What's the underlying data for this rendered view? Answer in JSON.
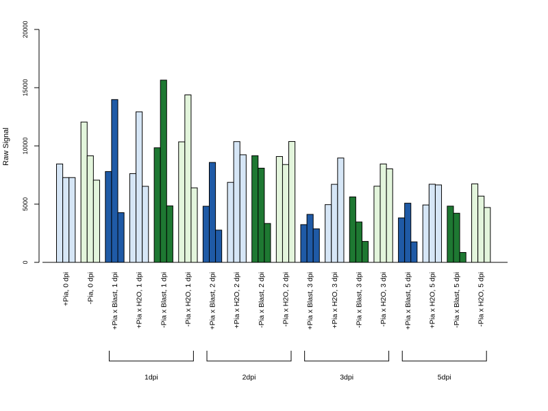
{
  "chart_data": {
    "type": "bar",
    "ylabel": "Raw Signal",
    "xlabel": "",
    "ylim": [
      0,
      20000
    ],
    "yticks": [
      0,
      5000,
      10000,
      15000,
      20000
    ],
    "grid": false,
    "categories": [
      "+Pia, 0 dpi",
      "-Pia, 0 dpi",
      "+Pia x Blast, 1 dpi",
      "+Pia x H2O, 1 dpi",
      "-Pia x Blast, 1 dpi",
      "-Pia x H2O, 1 dpi",
      "+Pia x Blast, 2 dpi",
      "+Pia x H2O, 2 dpi",
      "-Pia x Blast, 2 dpi",
      "-Pia x H2O, 2 dpi",
      "+Pia x Blast, 3 dpi",
      "+Pia x H2O, 3 dpi",
      "-Pia x Blast, 3 dpi",
      "-Pia x H2O, 3 dpi",
      "+Pia x Blast, 5 dpi",
      "+Pia x H2O, 5 dpi",
      "-Pia x Blast, 5 dpi",
      "-Pia x H2O, 5 dpi"
    ],
    "group_colors": [
      "#d6e6f6",
      "#e3f5dc",
      "#1f5aa6",
      "#d6e6f6",
      "#1e7832",
      "#e3f5dc",
      "#1f5aa6",
      "#d6e6f6",
      "#1e7832",
      "#e3f5dc",
      "#1f5aa6",
      "#d6e6f6",
      "#1e7832",
      "#e3f5dc",
      "#1f5aa6",
      "#d6e6f6",
      "#1e7832",
      "#e3f5dc"
    ],
    "values": [
      [
        8450,
        7280,
        7280
      ],
      [
        12050,
        9150,
        7060
      ],
      [
        7800,
        13980,
        4270
      ],
      [
        7620,
        12930,
        6530
      ],
      [
        9840,
        15650,
        4850
      ],
      [
        10350,
        14380,
        6400
      ],
      [
        4820,
        8580,
        2770
      ],
      [
        6870,
        10370,
        9240
      ],
      [
        9160,
        8090,
        3340
      ],
      [
        9090,
        8400,
        10380
      ],
      [
        3240,
        4120,
        2880
      ],
      [
        4960,
        6700,
        8960
      ],
      [
        5620,
        3470,
        1800
      ],
      [
        6540,
        8450,
        8030
      ],
      [
        3820,
        5080,
        1760
      ],
      [
        4930,
        6710,
        6650
      ],
      [
        4830,
        4220,
        850
      ],
      [
        6740,
        5690,
        4710
      ]
    ],
    "brackets": [
      {
        "label": "1dpi",
        "from": 2,
        "to": 5
      },
      {
        "label": "2dpi",
        "from": 6,
        "to": 9
      },
      {
        "label": "3dpi",
        "from": 10,
        "to": 13
      },
      {
        "label": "5dpi",
        "from": 14,
        "to": 17
      }
    ]
  }
}
